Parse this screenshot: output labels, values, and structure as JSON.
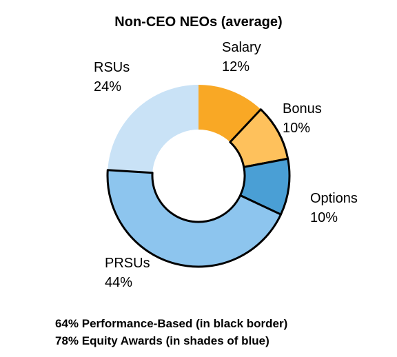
{
  "chart_data": {
    "type": "donut",
    "title": "Non-CEO NEOs (average)",
    "categories": [
      "Salary",
      "Bonus",
      "Options",
      "PRSUs",
      "RSUs"
    ],
    "values": [
      12,
      10,
      10,
      44,
      24
    ],
    "value_labels": [
      "12%",
      "10%",
      "10%",
      "44%",
      "24%"
    ],
    "colors": [
      "#f9a825",
      "#fec15c",
      "#4a9fd5",
      "#8dc5ee",
      "#c9e2f6"
    ],
    "outlined": [
      false,
      true,
      true,
      true,
      false
    ],
    "notes": [
      "64% Performance-Based (in black border)",
      "78% Equity Awards (in shades of blue)"
    ]
  }
}
